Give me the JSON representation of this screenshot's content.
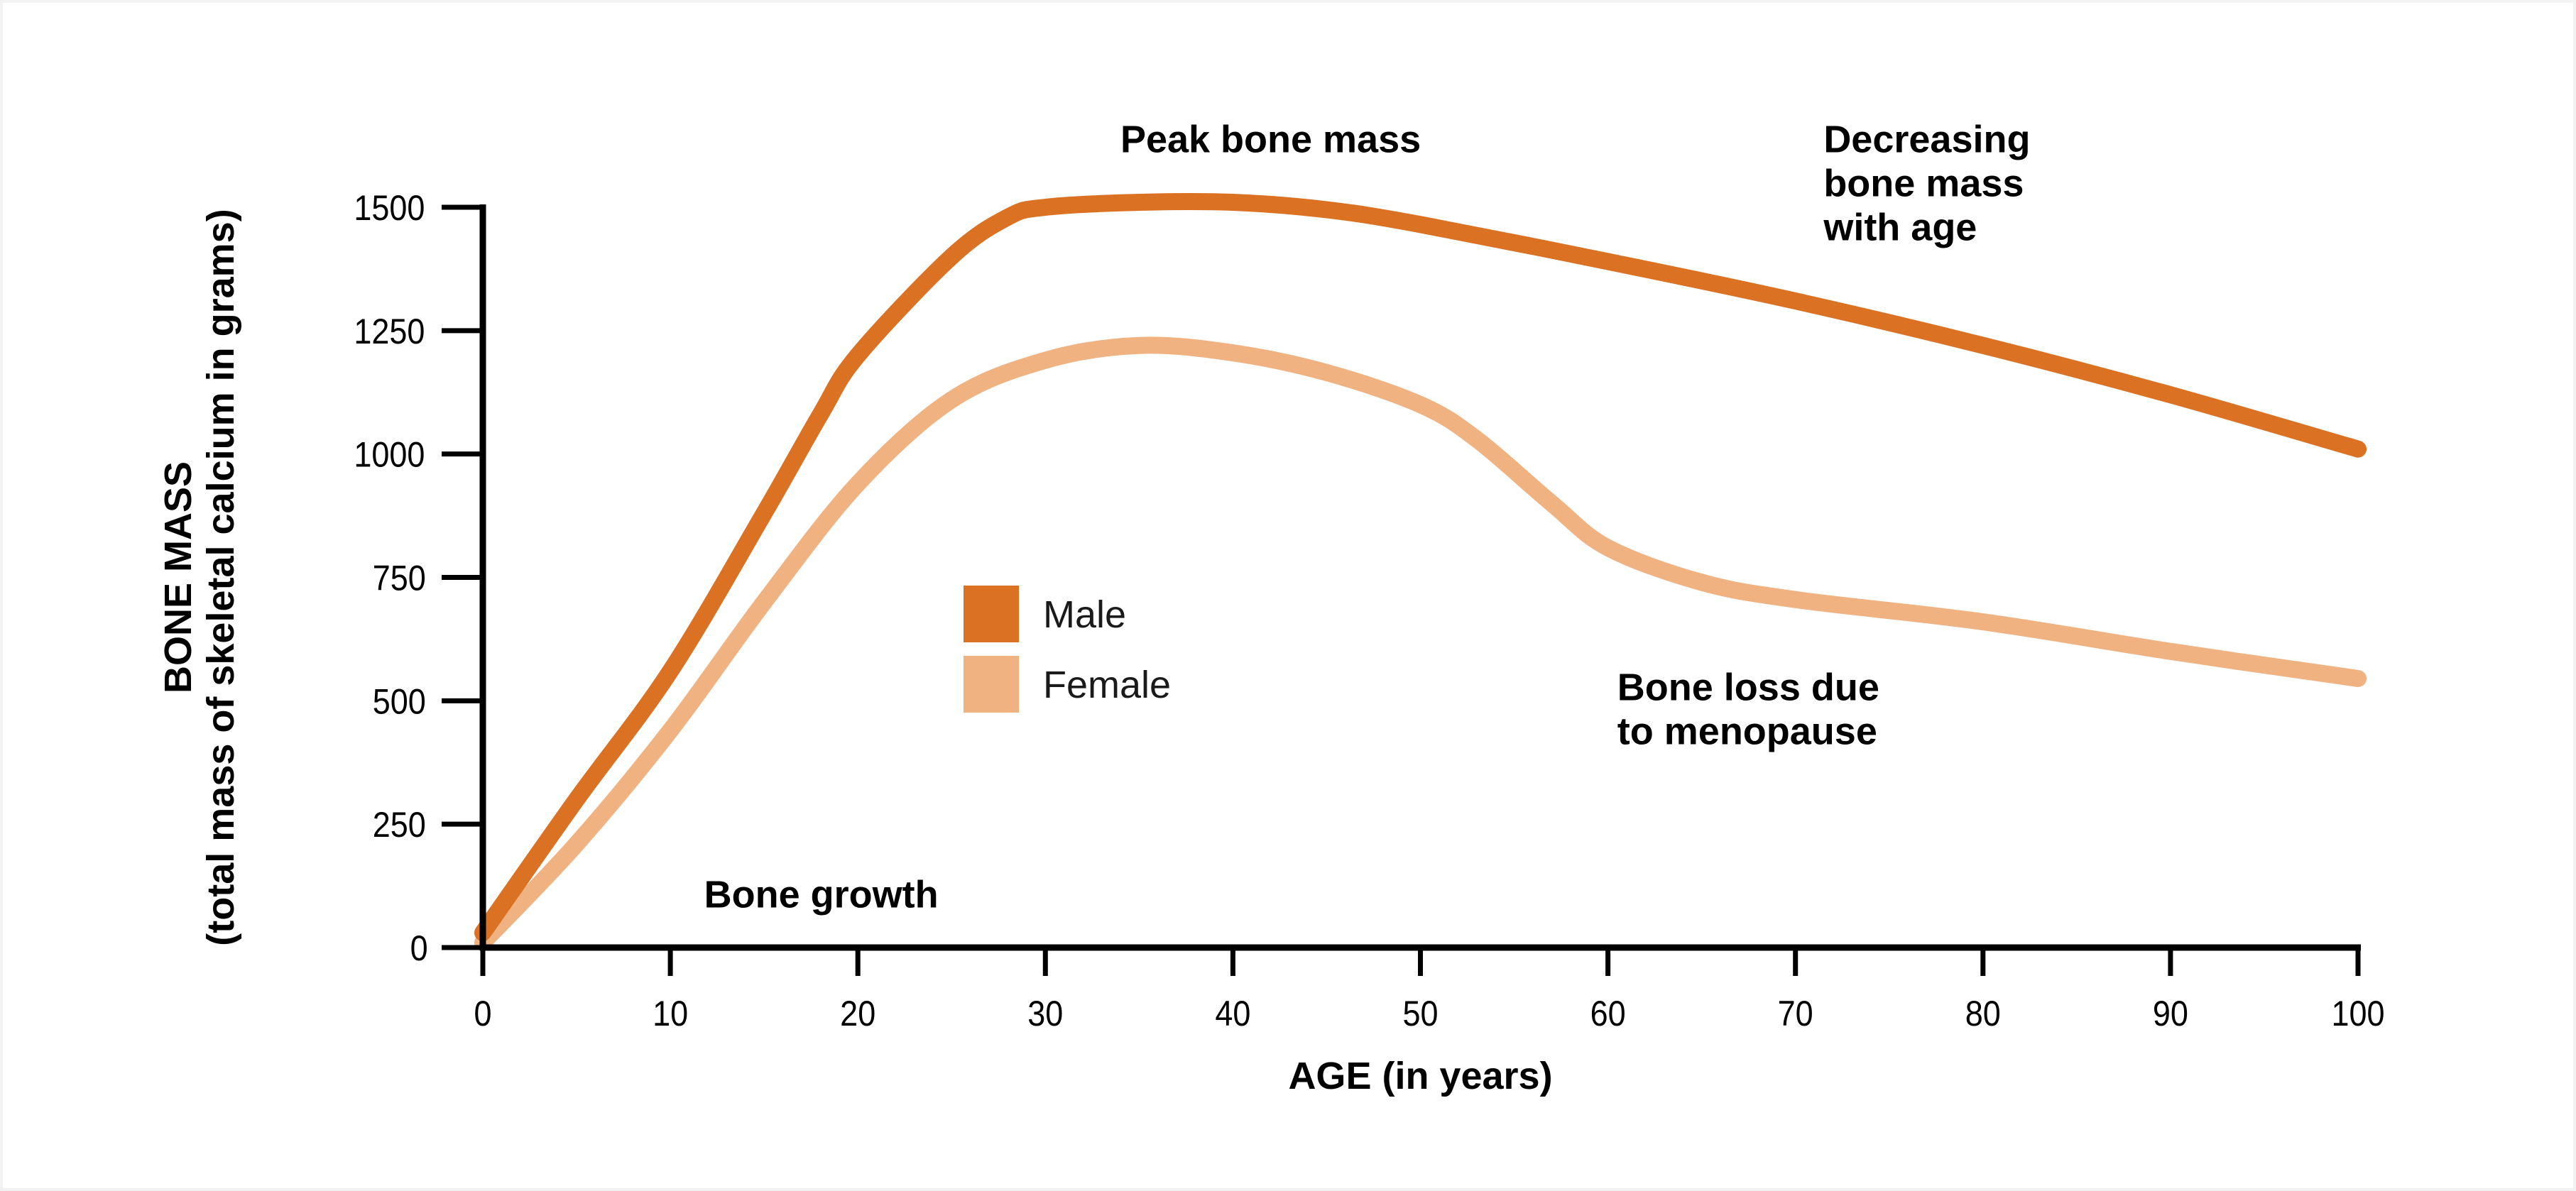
{
  "chart_data": {
    "type": "line",
    "xlabel": "AGE (in years)",
    "ylabel": [
      "BONE MASS",
      "(total mass of skeletal calcium in grams)"
    ],
    "xlim": [
      0,
      100
    ],
    "ylim": [
      0,
      1500
    ],
    "x_ticks": [
      0,
      10,
      20,
      30,
      40,
      50,
      60,
      70,
      80,
      90,
      100
    ],
    "y_ticks": [
      0,
      250,
      500,
      750,
      1000,
      1250,
      1500
    ],
    "grid": false,
    "legend": {
      "placement": "center-left",
      "entries": [
        {
          "label": "Male",
          "color": "#DA7123"
        },
        {
          "label": "Female",
          "color": "#F0B281"
        }
      ]
    },
    "series": [
      {
        "name": "Male",
        "color": "#DA7123",
        "x": [
          0,
          5,
          10,
          15,
          18,
          20,
          25,
          28,
          30,
          35,
          40,
          45,
          50,
          60,
          70,
          80,
          90,
          100
        ],
        "y": [
          30,
          300,
          560,
          880,
          1080,
          1200,
          1400,
          1480,
          1500,
          1510,
          1510,
          1495,
          1465,
          1390,
          1310,
          1220,
          1120,
          1010
        ]
      },
      {
        "name": "Female",
        "color": "#F0B281",
        "x": [
          0,
          5,
          10,
          15,
          20,
          25,
          30,
          35,
          40,
          45,
          50,
          53,
          57,
          60,
          65,
          70,
          80,
          90,
          100
        ],
        "y": [
          10,
          210,
          440,
          700,
          940,
          1110,
          1190,
          1220,
          1205,
          1165,
          1100,
          1030,
          900,
          810,
          740,
          705,
          660,
          600,
          545
        ]
      }
    ],
    "annotations": [
      {
        "text": [
          "Peak bone mass"
        ],
        "x": 34,
        "y": 1640
      },
      {
        "text": [
          "Decreasing",
          "bone mass",
          "with age"
        ],
        "x": 71.5,
        "y": 1640
      },
      {
        "text": [
          "Bone loss due",
          "to menopause"
        ],
        "x": 60.5,
        "y": 530
      },
      {
        "text": [
          "Bone growth"
        ],
        "x": 11.8,
        "y": 110
      }
    ]
  }
}
